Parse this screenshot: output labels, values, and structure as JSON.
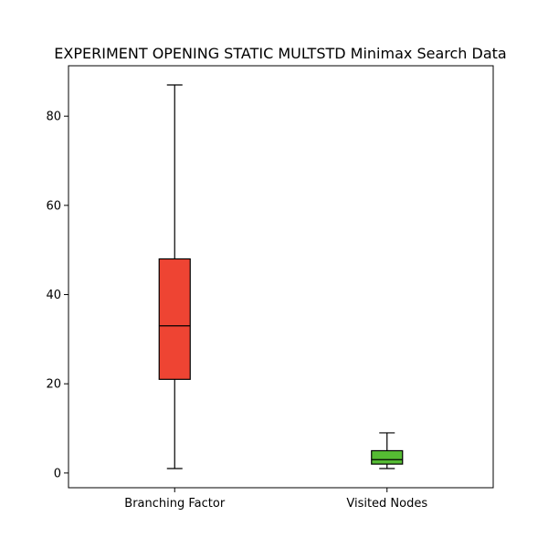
{
  "chart_data": {
    "type": "box",
    "title": "EXPERIMENT OPENING STATIC MULTSTD Minimax Search Data",
    "xlabel": "",
    "ylabel": "",
    "ylim": [
      -3.3,
      91.3
    ],
    "yticks": [
      0,
      20,
      40,
      60,
      80
    ],
    "grid": false,
    "series": [
      {
        "name": "Branching Factor",
        "whisker_low": 1,
        "q1": 21,
        "median": 33,
        "q3": 48,
        "whisker_high": 87,
        "color": "#ee4433"
      },
      {
        "name": "Visited Nodes",
        "whisker_low": 1,
        "q1": 2,
        "median": 3,
        "q3": 5,
        "whisker_high": 9,
        "color": "#55bb33"
      }
    ]
  }
}
